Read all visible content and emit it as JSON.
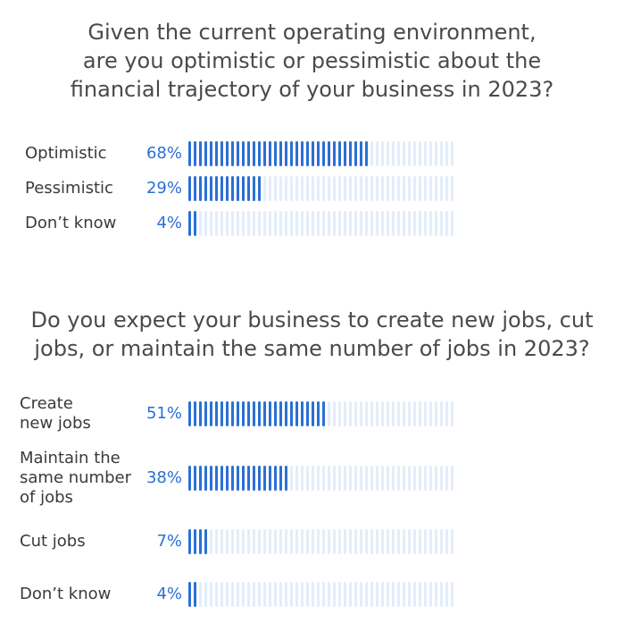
{
  "chart_data": [
    {
      "type": "bar",
      "title": "Given the current operating environment,\nare you optimistic or pessimistic about the\nfinancial trajectory of your business in 2023?",
      "categories": [
        "Optimistic",
        "Pessimistic",
        "Don’t know"
      ],
      "values": [
        68,
        29,
        4
      ],
      "value_labels": [
        "68%",
        "29%",
        "4%"
      ],
      "unit": "%",
      "ylim": [
        0,
        100
      ]
    },
    {
      "type": "bar",
      "title": "Do you expect your business to create new jobs, cut\njobs, or maintain the same number of jobs in 2023?",
      "categories": [
        "Create\nnew jobs",
        "Maintain the\nsame number\nof jobs",
        "Cut jobs",
        "Don’t know"
      ],
      "values": [
        51,
        38,
        7,
        4
      ],
      "value_labels": [
        "51%",
        "38%",
        "7%",
        "4%"
      ],
      "unit": "%",
      "ylim": [
        0,
        100
      ]
    }
  ],
  "colors": {
    "filled": "#2b6fd6",
    "empty": "#e3edfb",
    "title": "#4a4a4a",
    "label": "#3a3a3a",
    "percent": "#2b6fd6"
  }
}
